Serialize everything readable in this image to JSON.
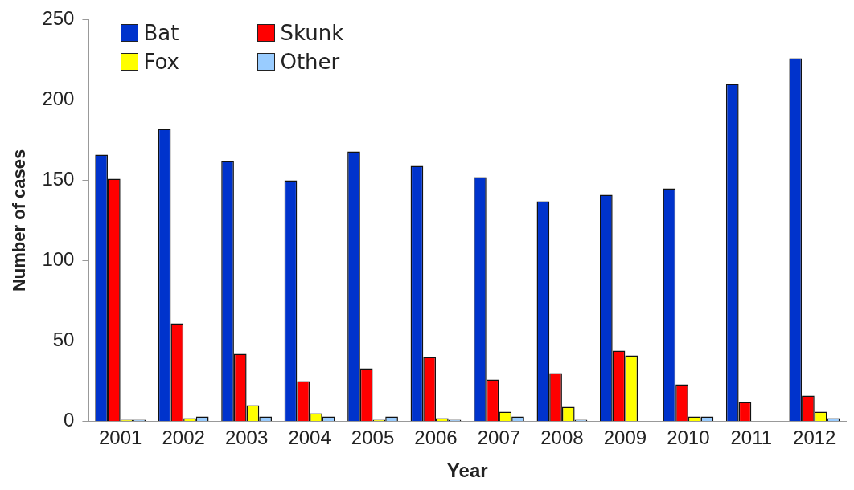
{
  "chart_data": {
    "type": "bar",
    "xlabel": "Year",
    "ylabel": "Number of cases",
    "categories": [
      "2001",
      "2002",
      "2003",
      "2004",
      "2005",
      "2006",
      "2007",
      "2008",
      "2009",
      "2010",
      "2011",
      "2012"
    ],
    "series": [
      {
        "name": "Bat",
        "color": "#0033cc",
        "values": [
          166,
          182,
          162,
          150,
          168,
          159,
          152,
          137,
          141,
          145,
          210,
          226
        ]
      },
      {
        "name": "Skunk",
        "color": "#ff0000",
        "values": [
          151,
          61,
          42,
          25,
          33,
          40,
          26,
          30,
          44,
          23,
          12,
          16
        ]
      },
      {
        "name": "Fox",
        "color": "#ffff00",
        "values": [
          1,
          2,
          10,
          5,
          1,
          2,
          6,
          9,
          41,
          3,
          0,
          6
        ]
      },
      {
        "name": "Other",
        "color": "#99ccff",
        "values": [
          1,
          3,
          3,
          3,
          3,
          1,
          3,
          1,
          0,
          3,
          0,
          2
        ]
      }
    ],
    "ylim": [
      0,
      250
    ],
    "yticks": [
      0,
      50,
      100,
      150,
      200,
      250
    ],
    "grid": false,
    "legend": "top left"
  }
}
